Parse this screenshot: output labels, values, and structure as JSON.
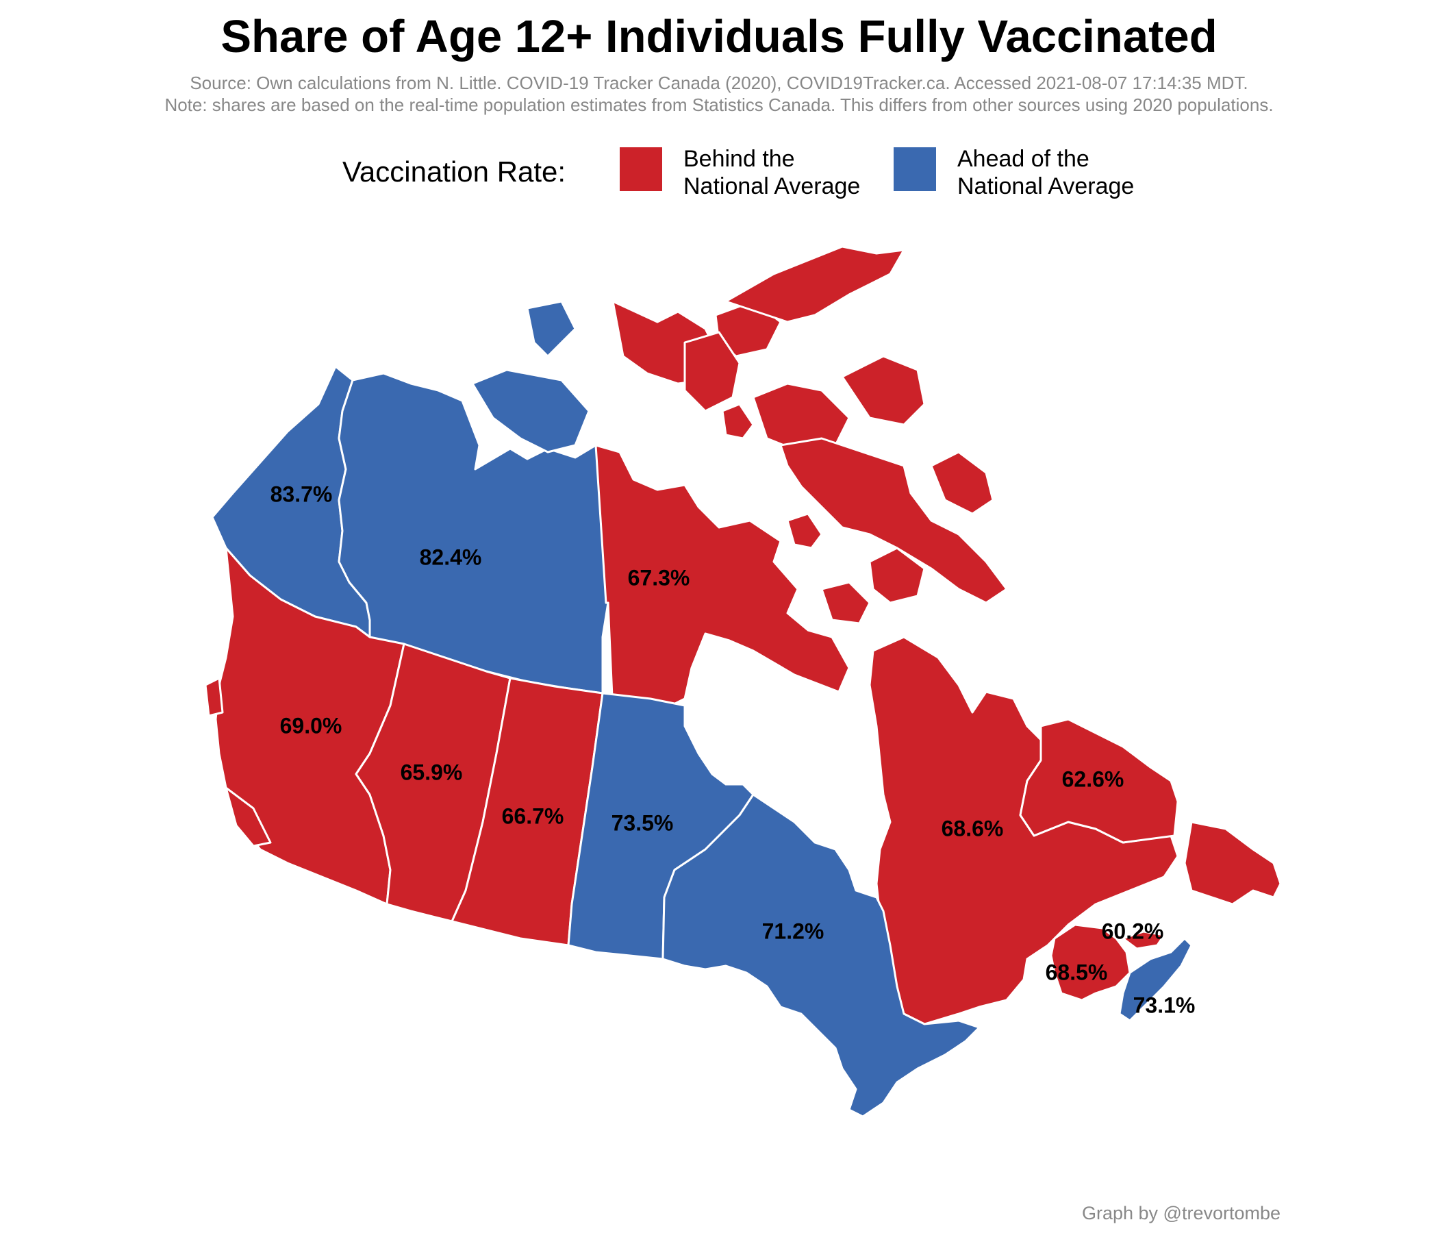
{
  "title": "Share of Age 12+ Individuals Fully Vaccinated",
  "source_line": "Source: Own calculations from N. Little. COVID-19 Tracker Canada (2020), COVID19Tracker.ca. Accessed 2021-08-07 17:14:35 MDT.",
  "note_line": "Note: shares are based on the real-time population estimates from Statistics Canada. This differs from other sources using 2020 populations.",
  "legend": {
    "title": "Vaccination Rate:",
    "items": [
      {
        "line1": "Behind the",
        "line2": "National Average",
        "color": "#CC2229"
      },
      {
        "line1": "Ahead of the",
        "line2": "National Average",
        "color": "#3A69B0"
      }
    ]
  },
  "credit": "Graph by @trevortombe",
  "regions": [
    {
      "id": "yt",
      "value": "83.7%",
      "color": "#3A69B0"
    },
    {
      "id": "nt",
      "value": "82.4%",
      "color": "#3A69B0"
    },
    {
      "id": "nu",
      "value": "67.3%",
      "color": "#CC2229"
    },
    {
      "id": "bc",
      "value": "69.0%",
      "color": "#CC2229"
    },
    {
      "id": "ab",
      "value": "65.9%",
      "color": "#CC2229"
    },
    {
      "id": "sk",
      "value": "66.7%",
      "color": "#CC2229"
    },
    {
      "id": "mb",
      "value": "73.5%",
      "color": "#3A69B0"
    },
    {
      "id": "on",
      "value": "71.2%",
      "color": "#3A69B0"
    },
    {
      "id": "qc",
      "value": "68.6%",
      "color": "#CC2229"
    },
    {
      "id": "nl",
      "value": "62.6%",
      "color": "#CC2229"
    },
    {
      "id": "pe",
      "value": "60.2%",
      "color": "#CC2229"
    },
    {
      "id": "nb",
      "value": "68.5%",
      "color": "#CC2229"
    },
    {
      "id": "ns",
      "value": "73.1%",
      "color": "#3A69B0"
    }
  ]
}
